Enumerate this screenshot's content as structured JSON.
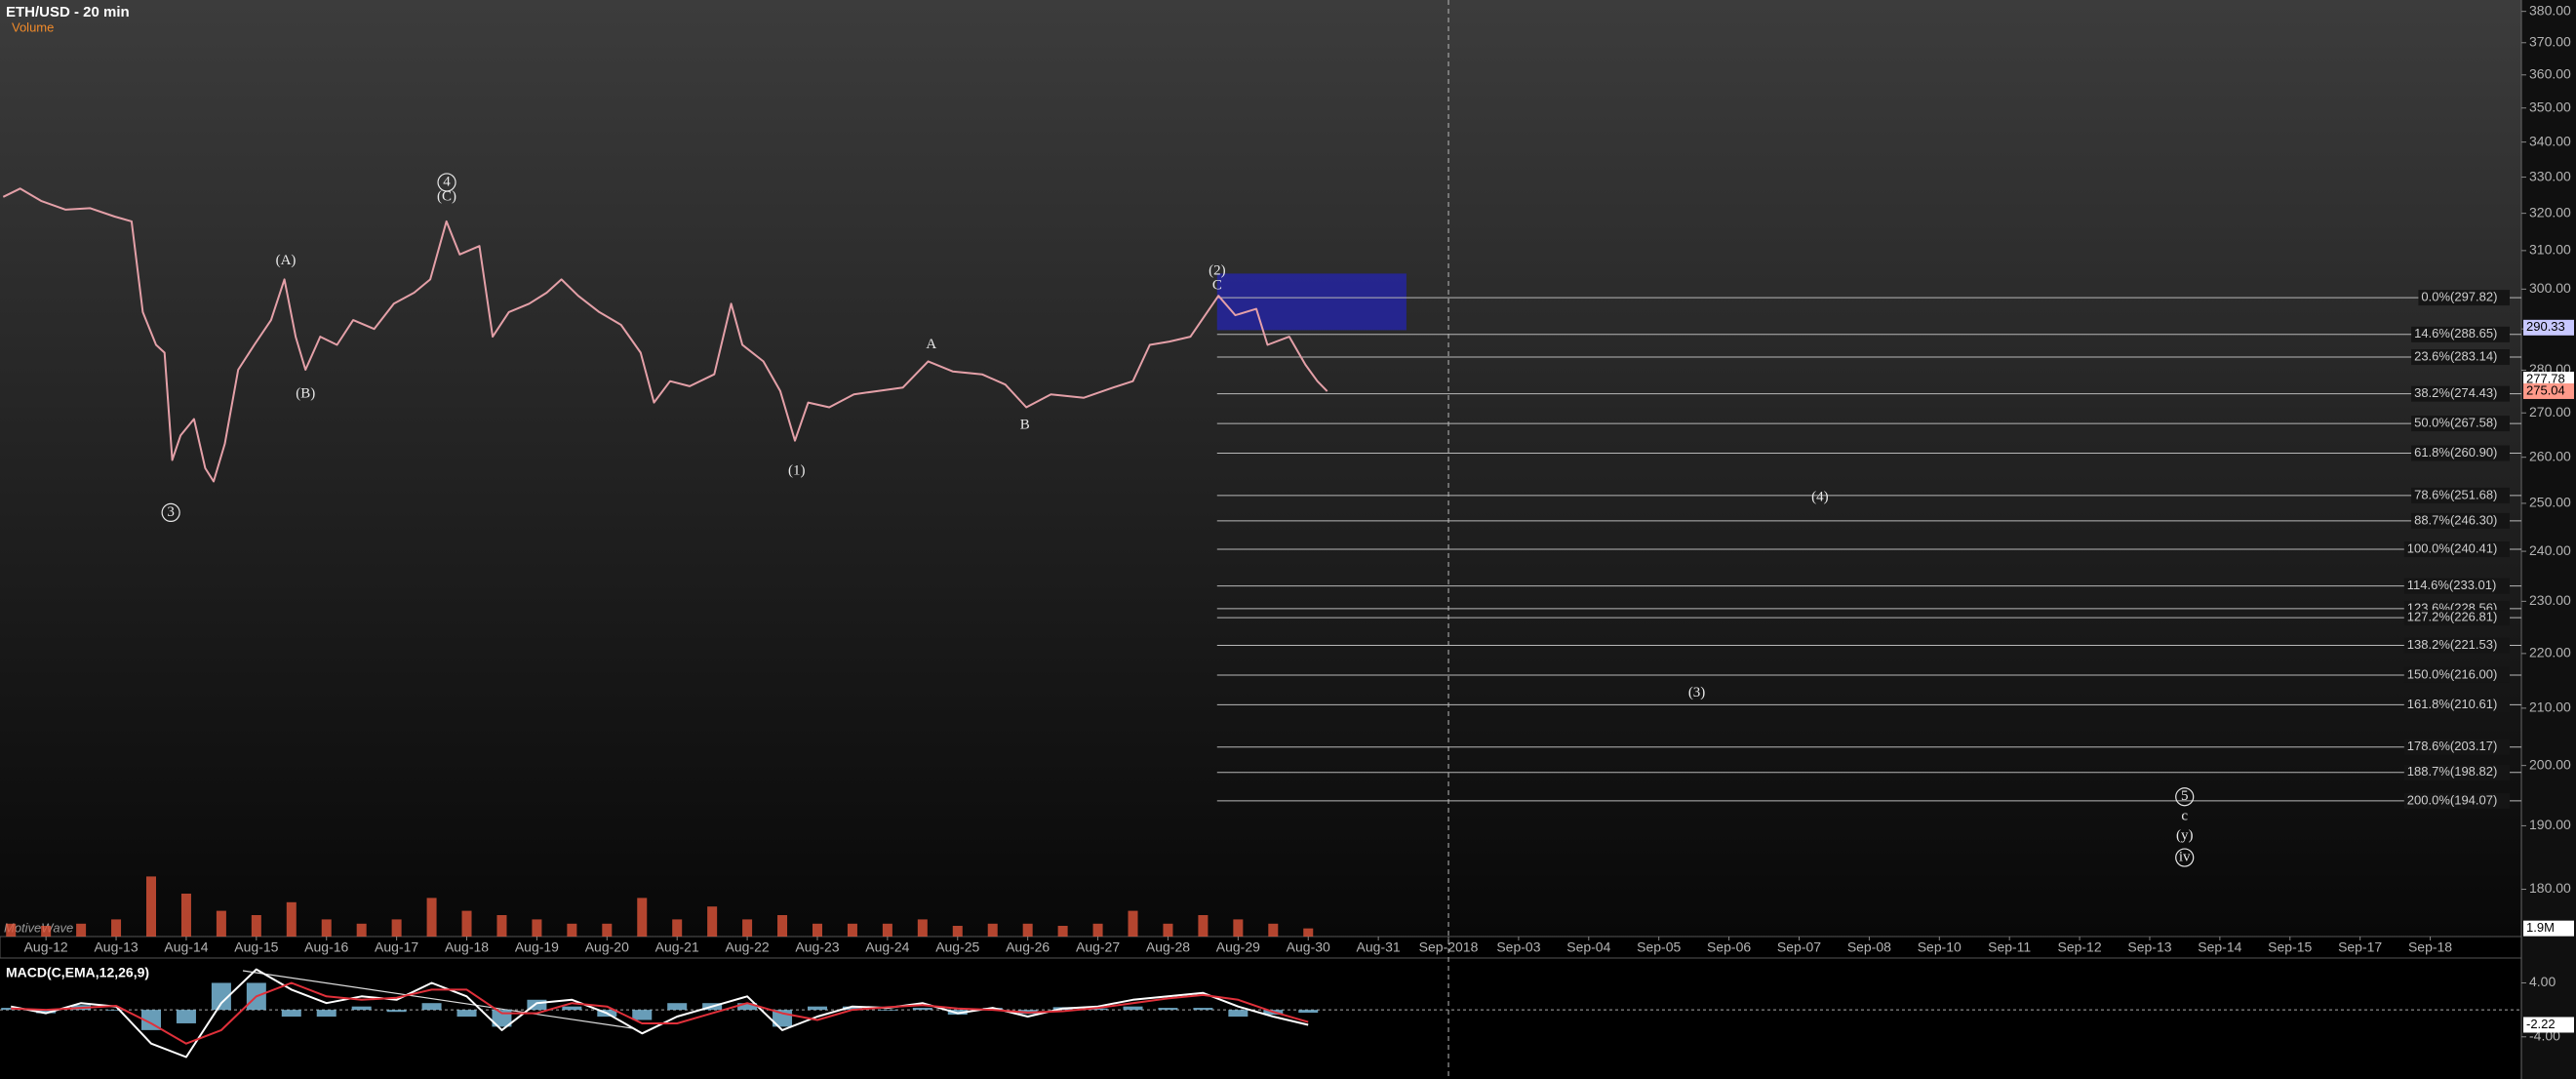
{
  "chart_data": [
    {
      "type": "line",
      "title": "ETH/USD - 20 min",
      "subtitle": "Volume",
      "watermark": "MotiveWave",
      "log_scale": true,
      "ylim": [
        172.9,
        383.7
      ],
      "xlim": [
        -0.656,
        35.3
      ],
      "yticks": [
        {
          "value": 180,
          "label": "180.00"
        },
        {
          "value": 190,
          "label": "190.00"
        },
        {
          "value": 200,
          "label": "200.00"
        },
        {
          "value": 210,
          "label": "210.00"
        },
        {
          "value": 220,
          "label": "220.00"
        },
        {
          "value": 230,
          "label": "230.00"
        },
        {
          "value": 240,
          "label": "240.00"
        },
        {
          "value": 250,
          "label": "250.00"
        },
        {
          "value": 260,
          "label": "260.00"
        },
        {
          "value": 270,
          "label": "270.00"
        },
        {
          "value": 280,
          "label": "280.00"
        },
        {
          "value": 290,
          "label": "290.00"
        },
        {
          "value": 300,
          "label": "300.00"
        },
        {
          "value": 310,
          "label": "310.00"
        },
        {
          "value": 320,
          "label": "320.00"
        },
        {
          "value": 330,
          "label": "330.00"
        },
        {
          "value": 340,
          "label": "340.00"
        },
        {
          "value": 350,
          "label": "350.00"
        },
        {
          "value": 360,
          "label": "360.00"
        },
        {
          "value": 370,
          "label": "370.00"
        },
        {
          "value": 380,
          "label": "380.00"
        }
      ],
      "xticks": [
        {
          "value": 0,
          "label": "Aug-12"
        },
        {
          "value": 1,
          "label": "Aug-13"
        },
        {
          "value": 2,
          "label": "Aug-14"
        },
        {
          "value": 3,
          "label": "Aug-15"
        },
        {
          "value": 4,
          "label": "Aug-16"
        },
        {
          "value": 5,
          "label": "Aug-17"
        },
        {
          "value": 6,
          "label": "Aug-18"
        },
        {
          "value": 7,
          "label": "Aug-19"
        },
        {
          "value": 8,
          "label": "Aug-20"
        },
        {
          "value": 9,
          "label": "Aug-21"
        },
        {
          "value": 10,
          "label": "Aug-22"
        },
        {
          "value": 11,
          "label": "Aug-23"
        },
        {
          "value": 12,
          "label": "Aug-24"
        },
        {
          "value": 13,
          "label": "Aug-25"
        },
        {
          "value": 14,
          "label": "Aug-26"
        },
        {
          "value": 15,
          "label": "Aug-27"
        },
        {
          "value": 16,
          "label": "Aug-28"
        },
        {
          "value": 17,
          "label": "Aug-29"
        },
        {
          "value": 18,
          "label": "Aug-30"
        },
        {
          "value": 19,
          "label": "Aug-31"
        },
        {
          "value": 20,
          "label": "Sep-2018"
        },
        {
          "value": 21,
          "label": "Sep-03"
        },
        {
          "value": 22,
          "label": "Sep-04"
        },
        {
          "value": 23,
          "label": "Sep-05"
        },
        {
          "value": 24,
          "label": "Sep-06"
        },
        {
          "value": 25,
          "label": "Sep-07"
        },
        {
          "value": 26,
          "label": "Sep-08"
        },
        {
          "value": 27,
          "label": "Sep-10"
        },
        {
          "value": 28,
          "label": "Sep-11"
        },
        {
          "value": 29,
          "label": "Sep-12"
        },
        {
          "value": 30,
          "label": "Sep-13"
        },
        {
          "value": 31,
          "label": "Sep-14"
        },
        {
          "value": 32,
          "label": "Sep-15"
        },
        {
          "value": 33,
          "label": "Sep-17"
        },
        {
          "value": 34,
          "label": "Sep-18"
        }
      ],
      "x": [
        -0.61,
        -0.37,
        -0.07,
        0.28,
        0.63,
        0.98,
        1.22,
        1.38,
        1.57,
        1.69,
        1.8,
        1.92,
        2.11,
        2.27,
        2.39,
        2.55,
        2.74,
        2.97,
        3.21,
        3.4,
        3.56,
        3.7,
        3.91,
        4.15,
        4.38,
        4.68,
        4.96,
        5.25,
        5.48,
        5.71,
        5.9,
        6.18,
        6.37,
        6.6,
        6.89,
        7.14,
        7.35,
        7.59,
        7.89,
        8.2,
        8.48,
        8.67,
        8.9,
        9.18,
        9.53,
        9.77,
        9.93,
        10.23,
        10.47,
        10.68,
        10.87,
        11.17,
        11.52,
        11.87,
        12.22,
        12.58,
        12.93,
        13.35,
        13.68,
        13.98,
        14.33,
        14.8,
        15.22,
        15.5,
        15.74,
        16.02,
        16.32,
        16.56,
        16.72,
        16.96,
        17.26,
        17.42,
        17.73,
        17.96,
        18.13,
        18.27
      ],
      "series": [
        {
          "color": "#e4a0a8",
          "values": [
            324.5,
            326.8,
            323.4,
            321.0,
            321.4,
            319.1,
            317.8,
            294.2,
            286.1,
            284.2,
            259.4,
            264.9,
            268.6,
            257.6,
            254.7,
            263.0,
            280.1,
            286.1,
            292.2,
            302.5,
            288.1,
            280.1,
            288.1,
            286.1,
            292.2,
            290.0,
            296.3,
            299.1,
            302.5,
            317.8,
            309.0,
            311.2,
            288.1,
            294.2,
            296.3,
            299.1,
            302.5,
            298.3,
            294.2,
            291.0,
            284.2,
            272.4,
            277.4,
            276.2,
            279.0,
            296.3,
            286.1,
            282.1,
            275.1,
            263.7,
            272.4,
            271.3,
            274.3,
            275.1,
            275.9,
            282.1,
            279.7,
            279.0,
            276.6,
            271.3,
            274.3,
            273.5,
            275.9,
            277.4,
            286.1,
            286.9,
            288.1,
            294.2,
            298.3,
            293.4,
            295.0,
            286.1,
            288.1,
            281.3,
            277.4,
            275.0
          ]
        }
      ],
      "markers": [
        {
          "value": 290.33,
          "label": "290.33",
          "color": "#c8c8ff"
        },
        {
          "value": 277.78,
          "label": "277.78",
          "color": "#ffffff"
        },
        {
          "value": 275.04,
          "label": "275.04",
          "color": "#ff9a8a"
        }
      ],
      "fib_start_x": 16.7,
      "fibs": [
        {
          "value": 297.82,
          "label": "0.0%(297.82)"
        },
        {
          "value": 288.65,
          "label": "14.6%(288.65)"
        },
        {
          "value": 283.14,
          "label": "23.6%(283.14)"
        },
        {
          "value": 274.43,
          "label": "38.2%(274.43)"
        },
        {
          "value": 267.58,
          "label": "50.0%(267.58)"
        },
        {
          "value": 260.9,
          "label": "61.8%(260.90)"
        },
        {
          "value": 251.68,
          "label": "78.6%(251.68)"
        },
        {
          "value": 246.3,
          "label": "88.7%(246.30)"
        },
        {
          "value": 240.41,
          "label": "100.0%(240.41)"
        },
        {
          "value": 233.01,
          "label": "114.6%(233.01)"
        },
        {
          "value": 228.56,
          "label": "123.6%(228.56)"
        },
        {
          "value": 226.81,
          "label": "127.2%(226.81)"
        },
        {
          "value": 221.53,
          "label": "138.2%(221.53)"
        },
        {
          "value": 216.0,
          "label": "150.0%(216.00)"
        },
        {
          "value": 210.61,
          "label": "161.8%(210.61)"
        },
        {
          "value": 203.17,
          "label": "178.6%(203.17)"
        },
        {
          "value": 198.82,
          "label": "188.7%(198.82)"
        },
        {
          "value": 194.07,
          "label": "200.0%(194.07)"
        }
      ],
      "zone": {
        "x": [
          16.7,
          19.4
        ],
        "y": [
          289.7,
          304.0
        ],
        "color": "#2424a8"
      },
      "vline_x": 20,
      "annotations": [
        "4",
        "(C)",
        "(A)",
        "(B)",
        "3",
        "(1)",
        "A",
        "B",
        "(2)",
        "C",
        "(4)",
        "(3)",
        "5",
        "c",
        "(y)",
        "iv"
      ],
      "volume": {
        "color": "#e0553a",
        "ylim": [
          0,
          20000000
        ],
        "x": [
          -0.5,
          0,
          0.5,
          1,
          1.5,
          2,
          2.5,
          3,
          3.5,
          4,
          4.5,
          5,
          5.5,
          6,
          6.5,
          7,
          7.5,
          8,
          8.5,
          9,
          9.5,
          10,
          10.5,
          11,
          11.5,
          12,
          12.5,
          13,
          13.5,
          14,
          14.5,
          15,
          15.5,
          16,
          16.5,
          17,
          17.5,
          18
        ],
        "values": [
          3000000,
          2500000,
          3000000,
          4000000,
          14000000,
          10000000,
          6000000,
          5000000,
          8000000,
          4000000,
          3000000,
          4000000,
          9000000,
          6000000,
          5000000,
          4000000,
          3000000,
          3000000,
          9000000,
          4000000,
          7000000,
          4000000,
          5000000,
          3000000,
          3000000,
          3000000,
          4000000,
          2500000,
          3000000,
          3000000,
          2500000,
          3000000,
          6000000,
          3000000,
          5000000,
          4000000,
          3000000,
          1900000
        ],
        "markers": [
          {
            "value": 1900000,
            "label": "1.9M",
            "color": "#ffffff"
          }
        ]
      }
    },
    {
      "type": "macd",
      "title": "MACD(C,EMA,12,26,9)",
      "ylim": [
        -10.25,
        7.25
      ],
      "xlim": [
        -0.656,
        35.3
      ],
      "yticks": [
        {
          "value": -4,
          "label": "-4.00"
        },
        {
          "value": 4,
          "label": "4.00"
        }
      ],
      "markers": [
        {
          "value": -2.22,
          "label": "-2.22",
          "color": "#ffffff"
        }
      ],
      "x": [
        -0.5,
        0,
        0.5,
        1,
        1.5,
        2,
        2.5,
        3,
        3.5,
        4,
        4.5,
        5,
        5.5,
        6,
        6.5,
        7,
        7.5,
        8,
        8.5,
        9,
        9.5,
        10,
        10.5,
        11,
        11.5,
        12,
        12.5,
        13,
        13.5,
        14,
        14.5,
        15,
        15.5,
        16,
        16.5,
        17,
        17.5,
        18
      ],
      "series": [
        {
          "kind": "bar",
          "color": "#7ab8d8",
          "values": [
            0.3,
            -0.5,
            0.7,
            -0.1,
            -3,
            -2,
            4,
            4,
            -1,
            -1,
            0.5,
            -0.3,
            1,
            -1,
            -2.5,
            1.5,
            0.5,
            -1,
            -1.5,
            1,
            1,
            1,
            -2.5,
            0.5,
            0.5,
            -0.1,
            0.3,
            -0.7,
            0.3,
            -0.6,
            0.4,
            0.2,
            0.5,
            0.3,
            0.3,
            -1,
            -0.7,
            -0.42
          ]
        },
        {
          "kind": "line",
          "color": "#ffffff",
          "values": [
            0.5,
            -0.5,
            1,
            0.5,
            -5,
            -7,
            1,
            6,
            3,
            1,
            2,
            1.5,
            4,
            2,
            -3,
            1,
            1.5,
            -0.5,
            -3.5,
            -1,
            0.5,
            2,
            -3,
            -1,
            0.5,
            0.3,
            1,
            -0.5,
            0.3,
            -1,
            0.2,
            0.5,
            1.5,
            2,
            2.5,
            0.5,
            -1,
            -2.22
          ]
        },
        {
          "kind": "line",
          "color": "#e0303a",
          "values": [
            0.2,
            0,
            0.3,
            0.6,
            -2,
            -5,
            -3,
            2,
            4,
            2,
            1.5,
            1.8,
            3,
            3,
            -0.5,
            -0.5,
            1,
            0.5,
            -2,
            -2,
            -0.5,
            1,
            -0.5,
            -1.5,
            0,
            0.4,
            0.7,
            0.2,
            0,
            -0.4,
            -0.2,
            0.3,
            1,
            1.7,
            2.2,
            1.5,
            -0.3,
            -1.8
          ]
        }
      ]
    }
  ]
}
